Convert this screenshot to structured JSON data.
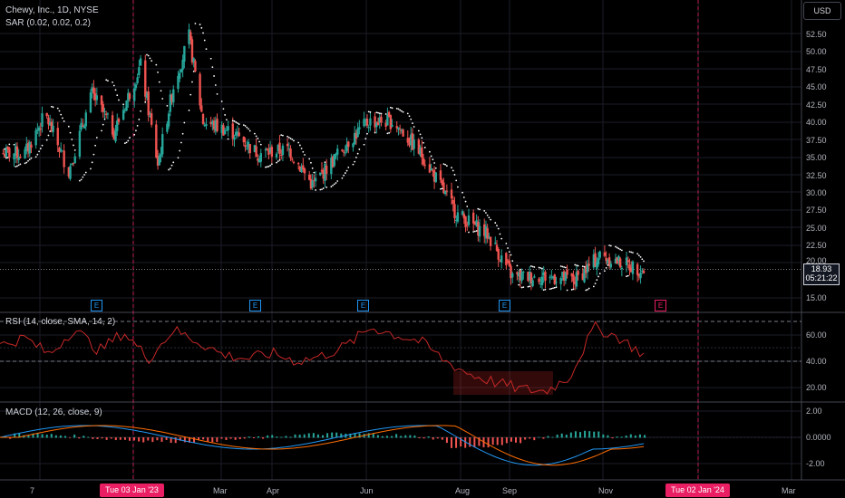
{
  "header": {
    "symbol_title": "Chewy, Inc., 1D, NYSE",
    "sar_label": "SAR (0.02, 0.02, 0.2)",
    "currency_button": "USD"
  },
  "price_axis": {
    "labels": [
      "52.50",
      "50.00",
      "47.50",
      "45.00",
      "42.50",
      "40.00",
      "37.50",
      "35.00",
      "32.50",
      "30.00",
      "27.50",
      "25.00",
      "22.50",
      "20.00",
      "15.00"
    ],
    "current_price": "18.93",
    "countdown": "05:21:22"
  },
  "rsi_pane": {
    "label": "RSI (14, close, SMA, 14, 2)",
    "axis_labels": [
      "60.00",
      "40.00",
      "20.00"
    ]
  },
  "macd_pane": {
    "label": "MACD (12, 26, close, 9)",
    "axis_labels": [
      "2.00",
      "0.0000",
      "-2.00"
    ]
  },
  "time_axis": {
    "labels": [
      "7",
      "Mar",
      "Apr",
      "Jun",
      "Aug",
      "Sep",
      "Nov",
      "Mar"
    ],
    "highlight_left": "Tue 03 Jan '23",
    "highlight_right": "Tue 02 Jan '24"
  },
  "earnings_markers": [
    "E",
    "E",
    "E",
    "E",
    "E"
  ],
  "colors": {
    "up": "#26a69a",
    "down": "#ef5350",
    "rsi": "#c62828",
    "macd": "#2196f3",
    "signal": "#ff6d00",
    "sar": "#ffffff",
    "highlight": "#e91e63"
  },
  "chart_data": {
    "type": "candlestick",
    "title": "Chewy, Inc., 1D, NYSE",
    "y_range": [
      13.5,
      54.5
    ],
    "price_path": [
      [
        "2022-11-07",
        35.5
      ],
      [
        "2022-11-20",
        41.0
      ],
      [
        "2022-12-05",
        33.0
      ],
      [
        "2022-12-20",
        44.0
      ],
      [
        "2023-01-03",
        38.5
      ],
      [
        "2023-01-20",
        48.0
      ],
      [
        "2023-01-31",
        34.0
      ],
      [
        "2023-02-10",
        45.0
      ],
      [
        "2023-02-20",
        52.0
      ],
      [
        "2023-03-01",
        40.0
      ],
      [
        "2023-03-20",
        38.5
      ],
      [
        "2023-04-05",
        35.5
      ],
      [
        "2023-04-25",
        36.0
      ],
      [
        "2023-05-10",
        31.0
      ],
      [
        "2023-05-25",
        35.0
      ],
      [
        "2023-06-01",
        37.0
      ],
      [
        "2023-06-15",
        40.0
      ],
      [
        "2023-07-01",
        40.0
      ],
      [
        "2023-07-20",
        35.0
      ],
      [
        "2023-08-10",
        27.0
      ],
      [
        "2023-08-30",
        24.0
      ],
      [
        "2023-09-15",
        18.0
      ],
      [
        "2023-10-10",
        18.0
      ],
      [
        "2023-10-25",
        17.5
      ],
      [
        "2023-11-10",
        21.0
      ],
      [
        "2023-11-30",
        19.5
      ],
      [
        "2023-12-08",
        18.93
      ]
    ],
    "rsi_path": [
      52,
      58,
      45,
      65,
      48,
      62,
      42,
      64,
      55,
      45,
      42,
      46,
      40,
      44,
      52,
      66,
      60,
      55,
      40,
      30,
      24,
      19,
      17,
      28,
      66,
      58,
      45
    ],
    "rsi_range": [
      10,
      75
    ],
    "macd_range": [
      -3.0,
      2.6
    ]
  }
}
